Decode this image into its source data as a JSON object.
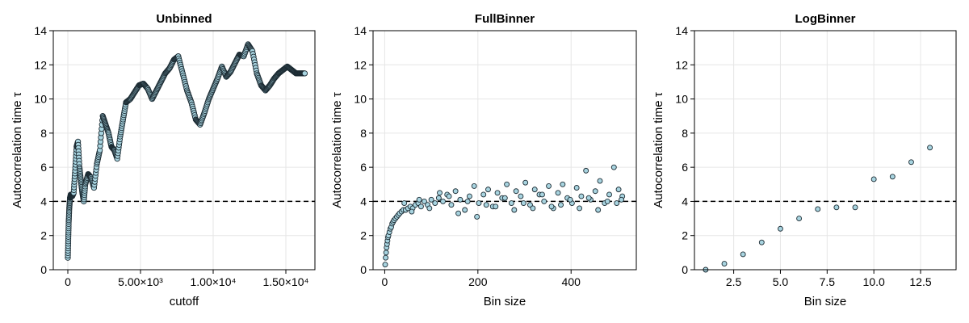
{
  "figure": {
    "background": "#ffffff",
    "marker_fill": "#a8d4e0",
    "marker_stroke": "#1c2b33",
    "reference_line_color": "#000000",
    "grid_color": "#e6e6e6"
  },
  "chart_data": [
    {
      "type": "scatter",
      "title": "Unbinned",
      "xlabel": "cutoff",
      "ylabel": "Autocorrelation time τ",
      "xlim": [
        -1000,
        17000
      ],
      "ylim": [
        0,
        14
      ],
      "xticks": [
        0,
        5000,
        10000,
        15000
      ],
      "xtick_labels": [
        "0",
        "5.00×10³",
        "1.00×10⁴",
        "1.50×10⁴"
      ],
      "yticks": [
        0,
        2,
        4,
        6,
        8,
        10,
        12,
        14
      ],
      "ytick_labels": [
        "0",
        "2",
        "4",
        "6",
        "8",
        "10",
        "12",
        "14"
      ],
      "grid": true,
      "reference_line_y": 4,
      "series_style": "dense markers forming a continuous trace",
      "x": [
        0,
        30,
        60,
        100,
        150,
        200,
        300,
        400,
        500,
        600,
        700,
        800,
        900,
        1000,
        1100,
        1200,
        1400,
        1600,
        1800,
        2000,
        2200,
        2400,
        2600,
        2800,
        3000,
        3200,
        3400,
        3600,
        3800,
        4000,
        4300,
        4600,
        4900,
        5200,
        5500,
        5800,
        6100,
        6400,
        6700,
        7000,
        7300,
        7600,
        7900,
        8200,
        8500,
        8800,
        9100,
        9400,
        9700,
        10000,
        10300,
        10600,
        10900,
        11200,
        11500,
        11800,
        12100,
        12400,
        12700,
        13000,
        13300,
        13600,
        13900,
        14200,
        14500,
        14800,
        15100,
        15400,
        15700,
        16000,
        16300
      ],
      "y": [
        0.7,
        1.8,
        2.8,
        3.6,
        4.2,
        4.4,
        4.3,
        4.5,
        5.8,
        7.2,
        7.5,
        6.0,
        5.2,
        4.5,
        4.0,
        5.0,
        5.6,
        5.4,
        4.8,
        6.2,
        7.0,
        9.0,
        8.5,
        8.0,
        7.2,
        7.0,
        6.5,
        7.8,
        8.8,
        9.8,
        10.0,
        10.4,
        10.8,
        10.9,
        10.6,
        10.0,
        10.5,
        11.0,
        11.5,
        11.8,
        12.3,
        12.5,
        11.5,
        10.5,
        9.8,
        8.8,
        8.5,
        9.2,
        10.0,
        10.6,
        11.2,
        11.9,
        11.3,
        11.6,
        12.1,
        12.6,
        12.5,
        13.2,
        12.8,
        11.5,
        10.8,
        10.5,
        10.8,
        11.2,
        11.5,
        11.7,
        11.9,
        11.7,
        11.5,
        11.5,
        11.5
      ]
    },
    {
      "type": "scatter",
      "title": "FullBinner",
      "xlabel": "Bin size",
      "ylabel": "Autocorrelation time τ",
      "xlim": [
        -25,
        540
      ],
      "ylim": [
        0,
        14
      ],
      "xticks": [
        0,
        200,
        400
      ],
      "xtick_labels": [
        "0",
        "200",
        "400"
      ],
      "yticks": [
        0,
        2,
        4,
        6,
        8,
        10,
        12,
        14
      ],
      "ytick_labels": [
        "0",
        "2",
        "4",
        "6",
        "8",
        "10",
        "12",
        "14"
      ],
      "grid": true,
      "reference_line_y": 4,
      "x": [
        1,
        2,
        3,
        4,
        5,
        6,
        7,
        8,
        10,
        12,
        14,
        16,
        18,
        20,
        23,
        26,
        29,
        32,
        36,
        40,
        45,
        50,
        55,
        60,
        66,
        72,
        78,
        85,
        92,
        100,
        108,
        116,
        125,
        134,
        143,
        152,
        162,
        172,
        182,
        192,
        202,
        212,
        222,
        232,
        242,
        252,
        262,
        272,
        282,
        292,
        302,
        312,
        322,
        332,
        342,
        352,
        362,
        372,
        382,
        392,
        402,
        412,
        422,
        432,
        442,
        452,
        462,
        472,
        482,
        492,
        502,
        510,
        42,
        58,
        74,
        96,
        118,
        138,
        158,
        178,
        198,
        218,
        238,
        258,
        278,
        298,
        318,
        338,
        358,
        378,
        398,
        418,
        438,
        458,
        478,
        498,
        508
      ],
      "y": [
        0.3,
        0.7,
        1.0,
        1.3,
        1.5,
        1.7,
        1.9,
        2.0,
        2.2,
        2.4,
        2.5,
        2.7,
        2.8,
        2.9,
        3.0,
        3.1,
        3.2,
        3.3,
        3.4,
        3.5,
        3.5,
        3.6,
        3.7,
        3.6,
        3.8,
        3.9,
        3.7,
        4.0,
        3.8,
        4.1,
        3.9,
        4.2,
        4.0,
        4.4,
        3.8,
        4.6,
        4.1,
        3.5,
        4.3,
        4.9,
        3.9,
        4.4,
        4.7,
        3.7,
        4.5,
        4.2,
        5.0,
        3.9,
        4.6,
        4.3,
        5.1,
        3.8,
        4.7,
        4.4,
        4.0,
        4.9,
        3.6,
        4.5,
        5.0,
        4.2,
        3.9,
        4.8,
        4.3,
        5.8,
        4.1,
        4.6,
        5.2,
        3.9,
        4.4,
        6.0,
        4.7,
        4.3,
        3.9,
        3.4,
        4.1,
        3.6,
        4.5,
        4.3,
        3.3,
        4.0,
        3.1,
        3.8,
        3.7,
        4.2,
        3.5,
        3.9,
        3.6,
        4.4,
        3.7,
        3.8,
        4.1,
        3.6,
        4.2,
        3.5,
        4.0,
        3.9,
        4.1
      ]
    },
    {
      "type": "scatter",
      "title": "LogBinner",
      "xlabel": "Bin size",
      "ylabel": "Autocorrelation time τ",
      "xlim": [
        0.4,
        14.4
      ],
      "ylim": [
        0,
        14
      ],
      "xticks": [
        2.5,
        5.0,
        7.5,
        10.0,
        12.5
      ],
      "xtick_labels": [
        "2.5",
        "5.0",
        "7.5",
        "10.0",
        "12.5"
      ],
      "yticks": [
        0,
        2,
        4,
        6,
        8,
        10,
        12,
        14
      ],
      "ytick_labels": [
        "0",
        "2",
        "4",
        "6",
        "8",
        "10",
        "12",
        "14"
      ],
      "grid": true,
      "reference_line_y": 4,
      "x": [
        1,
        2,
        3,
        4,
        5,
        6,
        7,
        8,
        9,
        10,
        11,
        12,
        13
      ],
      "y": [
        0.0,
        0.35,
        0.9,
        1.6,
        2.4,
        3.0,
        3.55,
        3.65,
        3.65,
        5.3,
        5.45,
        6.3,
        7.15
      ]
    }
  ]
}
